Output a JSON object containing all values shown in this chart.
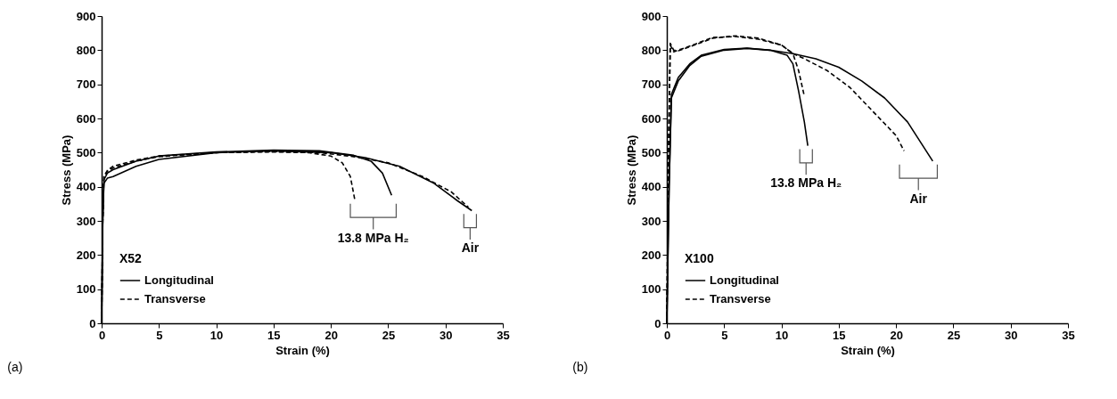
{
  "chart_data": [
    {
      "type": "line",
      "xlabel": "Strain (%)",
      "ylabel": "Stress (MPa)",
      "legend_title": "X52",
      "legend": "bottom left",
      "xlim": [
        0,
        35
      ],
      "xticks": [
        0,
        5,
        10,
        15,
        20,
        25,
        30,
        35
      ],
      "ylim": [
        0,
        900
      ],
      "yticks": [
        0,
        100,
        200,
        300,
        400,
        500,
        600,
        700,
        800,
        900
      ],
      "annotations": [
        {
          "text": "13.8 MPa H₂",
          "x": 25.3,
          "y": 375
        },
        {
          "text": "Air",
          "x": 32.3,
          "y": 330
        },
        "(a)"
      ],
      "series": [
        {
          "name": "Longitudinal",
          "color": "#000000",
          "line_style": "solid",
          "x": [
            0,
            0.1,
            0.2,
            0.5,
            1,
            3,
            5,
            10,
            15,
            20,
            23,
            26,
            29,
            31,
            32.3
          ],
          "values": [
            0,
            300,
            410,
            425,
            430,
            460,
            480,
            500,
            505,
            500,
            485,
            460,
            410,
            360,
            330
          ]
        },
        {
          "color": "#000000",
          "line_style": "solid",
          "x": [
            0,
            0.1,
            0.2,
            0.5,
            1,
            3,
            5,
            10,
            15,
            19,
            22,
            23.5,
            24.5,
            25.3
          ],
          "values": [
            0,
            300,
            420,
            440,
            450,
            475,
            490,
            502,
            507,
            505,
            492,
            475,
            440,
            375
          ]
        },
        {
          "name": "Transverse",
          "color": "#000000",
          "line_style": "dashed",
          "x": [
            0,
            0.1,
            0.2,
            0.5,
            1,
            3,
            5,
            10,
            15,
            19,
            22,
            25,
            28,
            30.5,
            32
          ],
          "values": [
            0,
            300,
            430,
            445,
            455,
            475,
            488,
            500,
            503,
            500,
            488,
            470,
            430,
            385,
            340
          ]
        },
        {
          "color": "#000000",
          "line_style": "dashed",
          "x": [
            0,
            0.1,
            0.2,
            0.5,
            1,
            3,
            5,
            10,
            15,
            18,
            20,
            21,
            21.7,
            22.1
          ],
          "values": [
            0,
            300,
            430,
            448,
            460,
            478,
            490,
            500,
            502,
            500,
            490,
            470,
            430,
            360
          ]
        }
      ]
    },
    {
      "type": "line",
      "xlabel": "Strain (%)",
      "ylabel": "Stress (MPa)",
      "legend_title": "X100",
      "legend": "bottom left",
      "xlim": [
        0,
        35
      ],
      "xticks": [
        0,
        5,
        10,
        15,
        20,
        25,
        30,
        35
      ],
      "ylim": [
        0,
        900
      ],
      "yticks": [
        0,
        100,
        200,
        300,
        400,
        500,
        600,
        700,
        800,
        900
      ],
      "annotations": [
        {
          "text": "13.8 MPa H₂",
          "x": 12.3,
          "y": 520
        },
        {
          "text": "Air",
          "x": 23.2,
          "y": 475
        },
        "(b)"
      ],
      "series": [
        {
          "name": "Longitudinal",
          "color": "#000000",
          "line_style": "solid",
          "x": [
            0,
            0.2,
            0.4,
            1,
            2,
            3,
            5,
            7,
            9,
            11,
            13,
            15,
            17,
            19,
            21,
            23.2
          ],
          "values": [
            0,
            400,
            660,
            710,
            755,
            782,
            800,
            805,
            800,
            790,
            775,
            750,
            710,
            660,
            590,
            475
          ]
        },
        {
          "color": "#000000",
          "line_style": "solid",
          "x": [
            0,
            0.2,
            0.4,
            1,
            2,
            3,
            5,
            7,
            9,
            10.5,
            11,
            11.5,
            12,
            12.3
          ],
          "values": [
            0,
            400,
            670,
            720,
            760,
            785,
            802,
            806,
            800,
            785,
            760,
            680,
            590,
            520
          ]
        },
        {
          "name": "Transverse",
          "color": "#000000",
          "line_style": "dashed",
          "x": [
            0,
            0.15,
            0.3,
            0.6,
            1,
            2,
            4,
            6,
            8,
            10,
            11,
            12,
            14,
            16,
            18,
            20,
            20.7
          ],
          "values": [
            0,
            500,
            820,
            800,
            798,
            810,
            835,
            842,
            835,
            815,
            790,
            775,
            740,
            690,
            620,
            550,
            505
          ]
        },
        {
          "color": "#000000",
          "line_style": "dashed",
          "x": [
            0,
            0.15,
            0.3,
            0.6,
            1,
            2,
            4,
            6,
            8,
            10,
            11,
            11.5,
            12
          ],
          "values": [
            0,
            500,
            815,
            795,
            800,
            812,
            837,
            840,
            832,
            815,
            790,
            740,
            665
          ]
        }
      ]
    }
  ]
}
